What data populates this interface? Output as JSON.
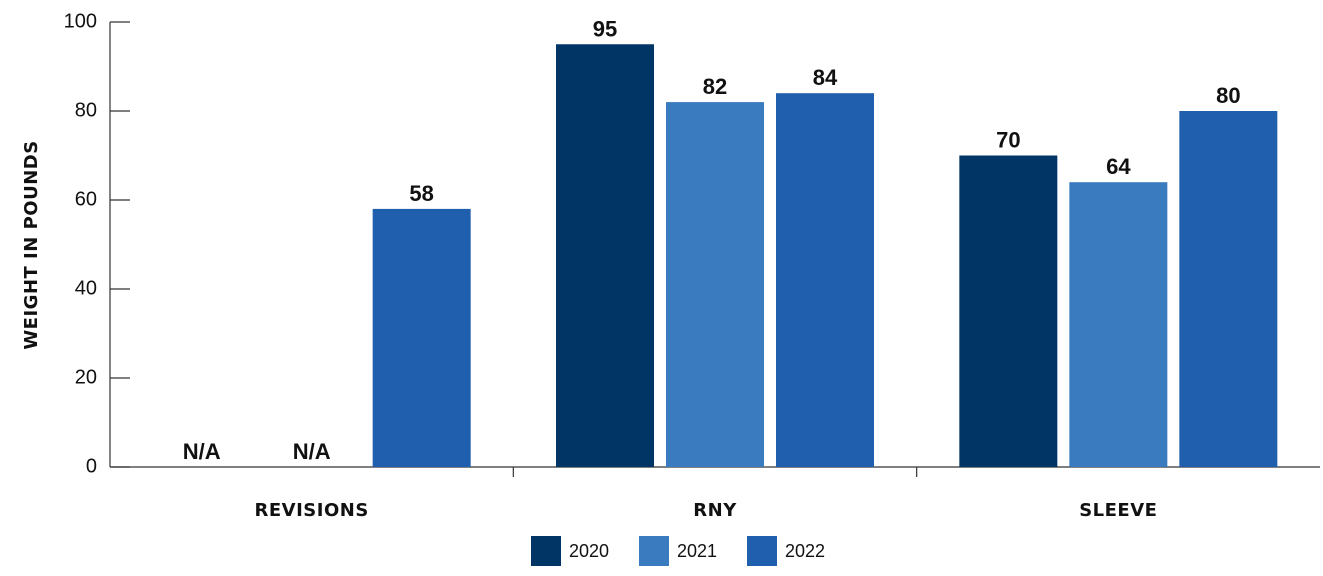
{
  "chart_data": {
    "type": "bar",
    "categories": [
      "REVISIONS",
      "RNY",
      "SLEEVE"
    ],
    "series": [
      {
        "name": "2020",
        "values": [
          null,
          95,
          70
        ],
        "labels": [
          "N/A",
          "95",
          "70"
        ],
        "color": "#003566"
      },
      {
        "name": "2021",
        "values": [
          null,
          82,
          64
        ],
        "labels": [
          "N/A",
          "82",
          "64"
        ],
        "color": "#3a7bbf"
      },
      {
        "name": "2022",
        "values": [
          58,
          84,
          80
        ],
        "labels": [
          "58",
          "84",
          "80"
        ],
        "color": "#1f5fae"
      }
    ],
    "ylabel": "WEIGHT IN POUNDS",
    "ylim": [
      0,
      100
    ],
    "yticks": [
      0,
      20,
      40,
      60,
      80,
      100
    ],
    "grid": false,
    "legend_position": "bottom-center"
  }
}
